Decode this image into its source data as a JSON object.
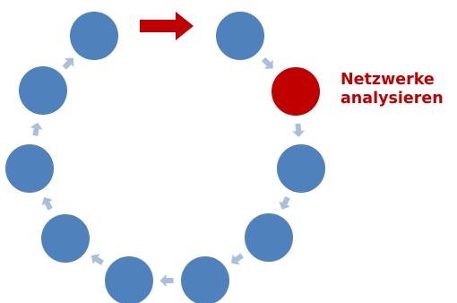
{
  "label": {
    "line1": "Netzwerke",
    "line2": "analysieren"
  },
  "colors": {
    "node": "#4f81bd",
    "active_node": "#c00000",
    "connector": "#a9c0dd",
    "highlight_arrow": "#c00000",
    "label": "#c00000"
  },
  "nodes": [
    {
      "id": "n1",
      "state": "normal"
    },
    {
      "id": "n2",
      "state": "normal"
    },
    {
      "id": "n3",
      "state": "active"
    },
    {
      "id": "n4",
      "state": "normal"
    },
    {
      "id": "n5",
      "state": "normal"
    },
    {
      "id": "n6",
      "state": "normal"
    },
    {
      "id": "n7",
      "state": "normal"
    },
    {
      "id": "n8",
      "state": "normal"
    },
    {
      "id": "n9",
      "state": "normal"
    },
    {
      "id": "n10",
      "state": "normal"
    },
    {
      "id": "n11",
      "state": "normal"
    }
  ]
}
